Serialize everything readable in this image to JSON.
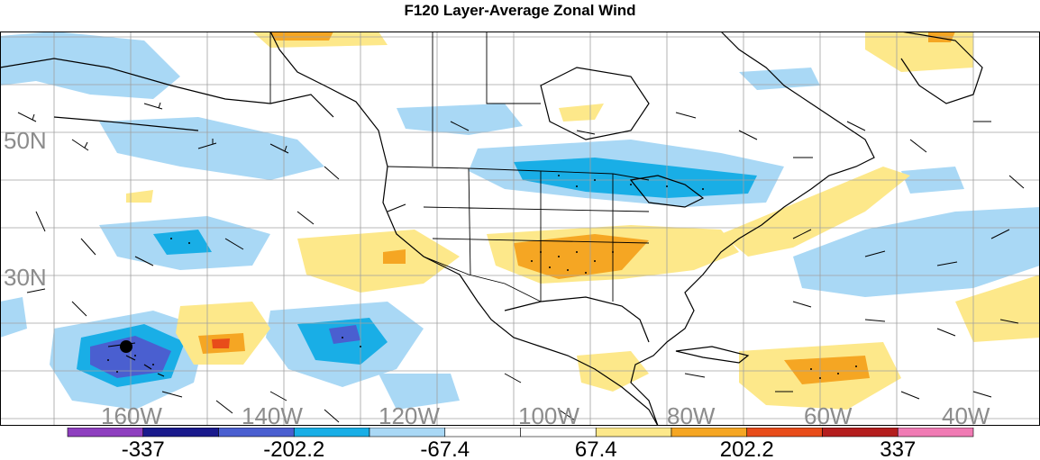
{
  "title": "F120 Layer-Average Zonal Wind",
  "colors": {
    "background": "#ffffff",
    "land_outline": "#000000",
    "grid": "#a0a0a0",
    "label_grey": "#8c8c8c"
  },
  "map": {
    "lat_labels": [
      "50N",
      "30N"
    ],
    "lon_labels": [
      "160W",
      "140W",
      "120W",
      "100W",
      "80W",
      "60W",
      "40W"
    ]
  },
  "colorbar": {
    "bins": [
      "#8e3fbf",
      "#1a1a8c",
      "#4a5fd0",
      "#19aee6",
      "#a9d8f5",
      "#ffffff",
      "#ffffff",
      "#fde88a",
      "#f5a623",
      "#e84c1a",
      "#b41e1e",
      "#f07bb4"
    ],
    "labels": [
      "-337",
      "-202.2",
      "-67.4",
      "67.4",
      "202.2",
      "337"
    ]
  }
}
